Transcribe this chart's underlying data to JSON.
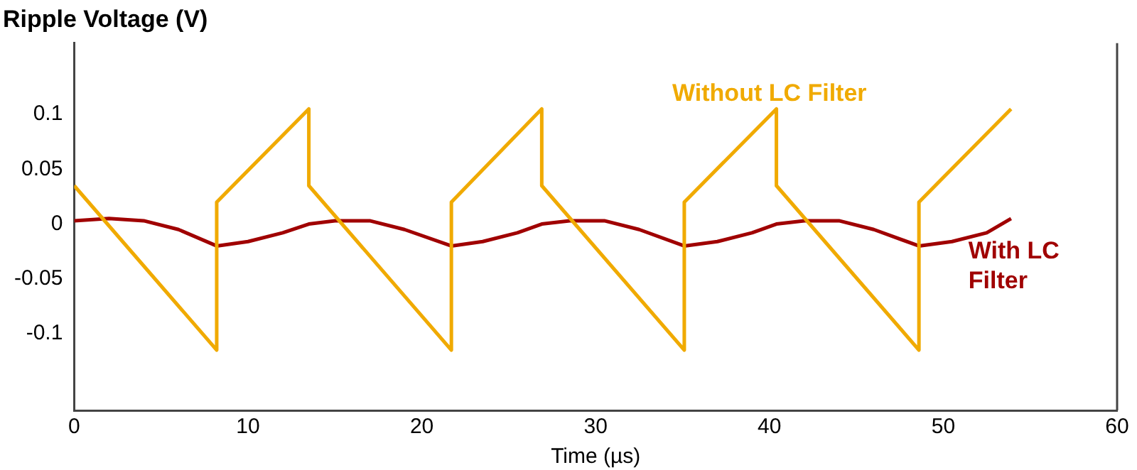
{
  "chart_data": {
    "type": "line",
    "ylabel": "Ripple Voltage (V)",
    "xlabel": "Time (µs)",
    "xlim": [
      0,
      60
    ],
    "xticks": [
      0,
      10,
      20,
      30,
      40,
      50,
      60
    ],
    "ylim": [
      -0.17,
      0.165
    ],
    "yticks": [
      -0.1,
      -0.05,
      0,
      0.05,
      0.1
    ],
    "grid": false,
    "legend": false,
    "marker": "none",
    "line_style": "solid",
    "series": [
      {
        "name": "Without LC Filter",
        "color": "#f0aa00",
        "x": [
          0,
          8.2,
          8.2,
          13.5,
          13.5,
          21.7,
          21.7,
          26.9,
          26.9,
          35.1,
          35.1,
          40.4,
          40.4,
          48.6,
          48.6,
          53.9
        ],
        "values": [
          0.035,
          -0.115,
          0.02,
          0.105,
          0.035,
          -0.115,
          0.02,
          0.105,
          0.035,
          -0.115,
          0.02,
          0.105,
          0.035,
          -0.115,
          0.02,
          0.105
        ]
      },
      {
        "name": "With LC Filter",
        "color": "#a00000",
        "x": [
          0,
          2,
          4,
          6,
          8.2,
          10,
          12,
          13.5,
          15,
          17,
          19,
          21.7,
          23.5,
          25.5,
          26.9,
          28.5,
          30.5,
          32.5,
          35.1,
          37,
          39,
          40.4,
          42,
          44,
          46,
          48.6,
          50.5,
          52.5,
          53.9
        ],
        "values": [
          0.003,
          0.005,
          0.003,
          -0.005,
          -0.02,
          -0.016,
          -0.008,
          0,
          0.003,
          0.003,
          -0.005,
          -0.02,
          -0.016,
          -0.008,
          0,
          0.003,
          0.003,
          -0.005,
          -0.02,
          -0.016,
          -0.008,
          0,
          0.003,
          0.003,
          -0.005,
          -0.02,
          -0.016,
          -0.008,
          0.005
        ]
      }
    ]
  }
}
